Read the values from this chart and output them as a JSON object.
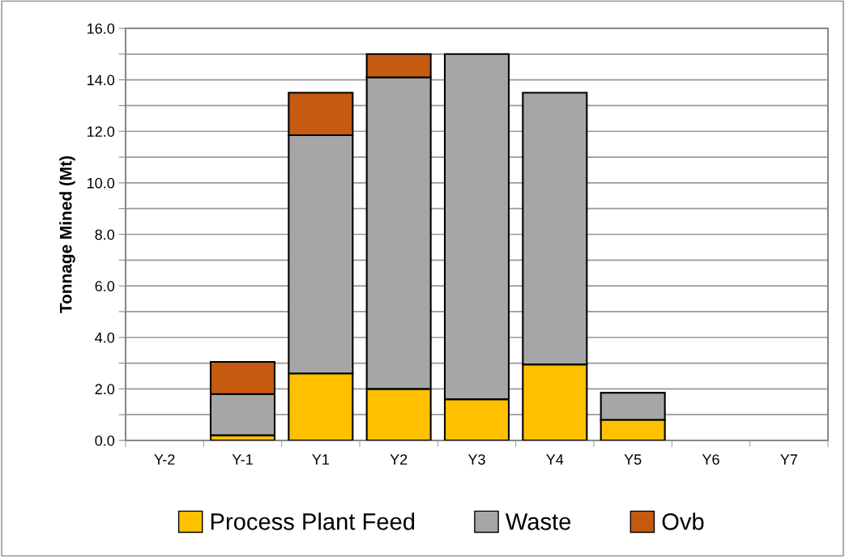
{
  "chart_data": {
    "type": "bar",
    "stacked": true,
    "ylabel": "Tonnage Mined (Mt)",
    "categories": [
      "Y-2",
      "Y-1",
      "Y1",
      "Y2",
      "Y3",
      "Y4",
      "Y5",
      "Y6",
      "Y7"
    ],
    "series": [
      {
        "name": "Process Plant Feed",
        "color": "#ffc000",
        "values": [
          null,
          0.2,
          2.6,
          2.0,
          1.6,
          2.95,
          0.8,
          null,
          null
        ]
      },
      {
        "name": "Waste",
        "color": "#a6a6a6",
        "values": [
          null,
          1.6,
          9.25,
          12.1,
          13.4,
          10.55,
          1.05,
          null,
          null
        ]
      },
      {
        "name": "Ovb",
        "color": "#c55a11",
        "values": [
          null,
          1.25,
          1.65,
          0.9,
          null,
          null,
          null,
          null,
          null
        ]
      }
    ],
    "ylim": [
      0,
      16
    ],
    "yticks": [
      {
        "value": 0,
        "label": "0.0"
      },
      {
        "value": 1,
        "label": null
      },
      {
        "value": 2,
        "label": "2.0"
      },
      {
        "value": 3,
        "label": null
      },
      {
        "value": 4,
        "label": "4.0"
      },
      {
        "value": 5,
        "label": null
      },
      {
        "value": 6,
        "label": "6.0"
      },
      {
        "value": 7,
        "label": null
      },
      {
        "value": 8,
        "label": "8.0"
      },
      {
        "value": 9,
        "label": null
      },
      {
        "value": 10,
        "label": "10.0"
      },
      {
        "value": 11,
        "label": null
      },
      {
        "value": 12,
        "label": "12.0"
      },
      {
        "value": 13,
        "label": null
      },
      {
        "value": 14,
        "label": "14.0"
      },
      {
        "value": 15,
        "label": null
      },
      {
        "value": 16,
        "label": "16.0"
      }
    ],
    "grid": "y",
    "legend": "bottom"
  }
}
